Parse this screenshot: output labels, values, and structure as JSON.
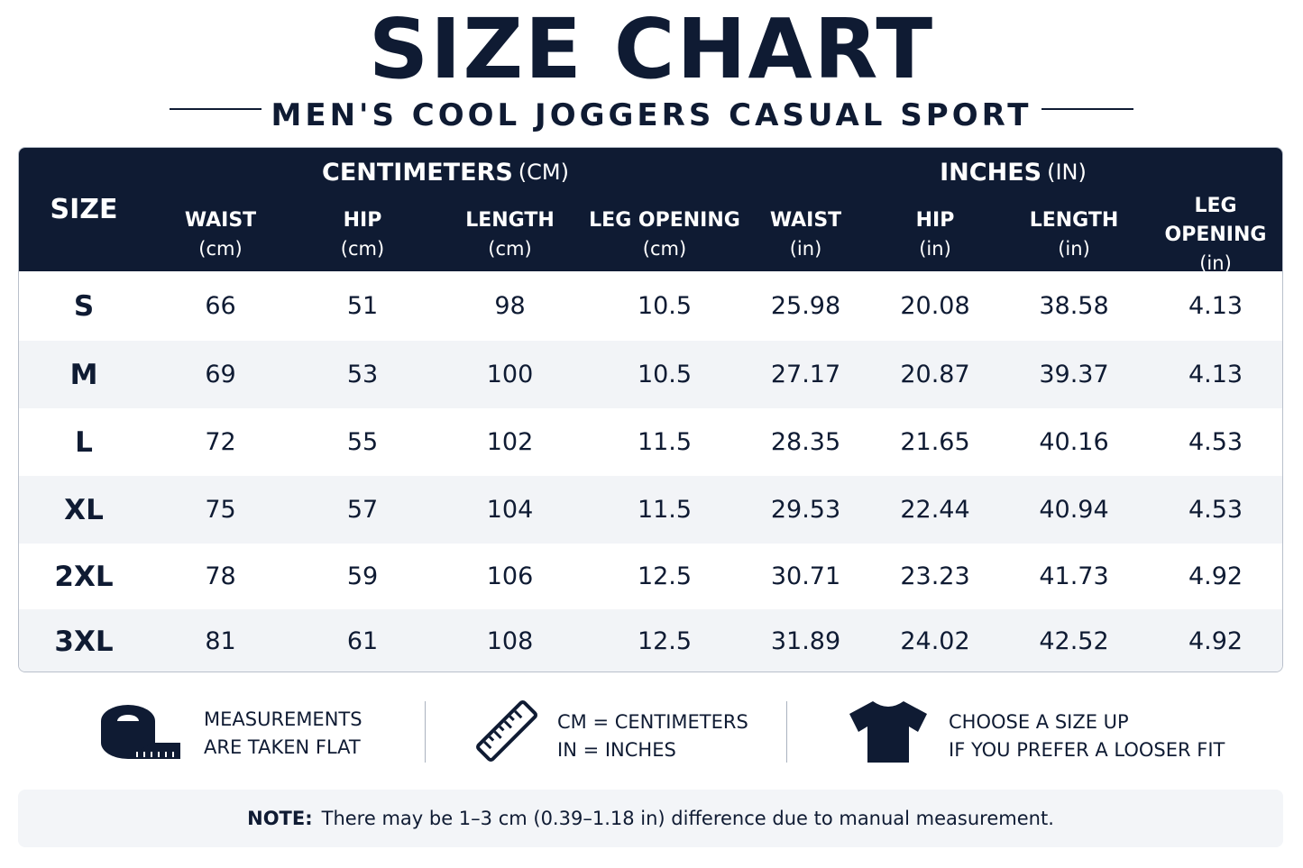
{
  "header": {
    "title": "SIZE CHART",
    "subtitle": "MEN'S COOL JOGGERS CASUAL SPORT"
  },
  "table": {
    "size_header": "SIZE",
    "groups": [
      {
        "label": "CENTIMETERS",
        "unit": "(CM)"
      },
      {
        "label": "INCHES",
        "unit": "(IN)"
      }
    ],
    "columns": [
      {
        "label": "WAIST",
        "unit": "(cm)"
      },
      {
        "label": "HIP",
        "unit": "(cm)"
      },
      {
        "label": "LENGTH",
        "unit": "(cm)"
      },
      {
        "label": "LEG OPENING",
        "unit": "(cm)"
      },
      {
        "label": "WAIST",
        "unit": "(in)"
      },
      {
        "label": "HIP",
        "unit": "(in)"
      },
      {
        "label": "LENGTH",
        "unit": "(in)"
      },
      {
        "label": "LEG OPENING",
        "unit": "(in)"
      }
    ],
    "rows": [
      [
        "S",
        "66",
        "51",
        "98",
        "10.5",
        "25.98",
        "20.08",
        "38.58",
        "4.13"
      ],
      [
        "M",
        "69",
        "53",
        "100",
        "10.5",
        "27.17",
        "20.87",
        "39.37",
        "4.13"
      ],
      [
        "L",
        "72",
        "55",
        "102",
        "11.5",
        "28.35",
        "21.65",
        "40.16",
        "4.53"
      ],
      [
        "XL",
        "75",
        "57",
        "104",
        "11.5",
        "29.53",
        "22.44",
        "40.94",
        "4.53"
      ],
      [
        "2XL",
        "78",
        "59",
        "106",
        "12.5",
        "30.71",
        "23.23",
        "41.73",
        "4.92"
      ],
      [
        "3XL",
        "81",
        "61",
        "108",
        "12.5",
        "31.89",
        "24.02",
        "42.52",
        "4.92"
      ]
    ]
  },
  "tips": [
    {
      "lines": [
        "MEASUREMENTS",
        "ARE TAKEN FLAT"
      ]
    },
    {
      "lines": [
        "CM = CENTIMETERS",
        "IN = INCHES"
      ]
    },
    {
      "lines": [
        "CHOOSE A SIZE UP",
        "IF YOU PREFER A LOOSER FIT"
      ]
    }
  ],
  "note": {
    "label": "NOTE:",
    "text": "There may be 1–3 cm (0.39–1.18 in) difference due to manual measurement."
  }
}
